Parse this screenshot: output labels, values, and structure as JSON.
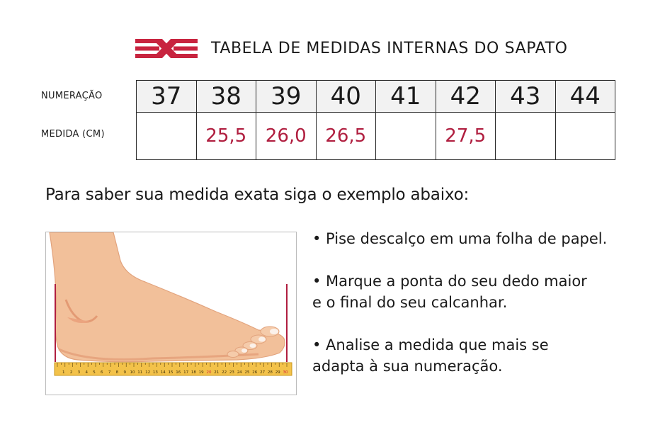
{
  "header": {
    "title": "TABELA DE MEDIDAS INTERNAS DO SAPATO",
    "logo_icon": "crossed-stripes-logo-icon",
    "brand_color": "#c8243f"
  },
  "size_table": {
    "row_labels": {
      "numbers": "NUMERAÇÃO",
      "measures": "MEDIDA (CM)"
    },
    "sizes": [
      "37",
      "38",
      "39",
      "40",
      "41",
      "42",
      "43",
      "44"
    ],
    "measures_cm": [
      "",
      "25,5",
      "26,0",
      "26,5",
      "",
      "27,5",
      "",
      ""
    ],
    "measure_color": "#b01e3f"
  },
  "instruction": "Para saber sua medida exata siga o exemplo abaixo:",
  "illustration": {
    "icon": "foot-on-ruler-illustration",
    "ruler_ticks": [
      "1",
      "2",
      "3",
      "4",
      "5",
      "6",
      "7",
      "8",
      "9",
      "10",
      "11",
      "12",
      "13",
      "14",
      "15",
      "16",
      "17",
      "18",
      "19",
      "20",
      "21",
      "22",
      "23",
      "24",
      "25",
      "26",
      "27",
      "28",
      "29",
      "30"
    ],
    "highlight_ticks": [
      "20",
      "30"
    ],
    "highlight_color": "#d4213a"
  },
  "steps": [
    [
      "• Pise descalço em uma folha de papel."
    ],
    [
      "• Marque a ponta do seu dedo maior",
      "e o final do seu calcanhar."
    ],
    [
      "• Analise a medida que mais se",
      "adapta à sua numeração."
    ]
  ]
}
